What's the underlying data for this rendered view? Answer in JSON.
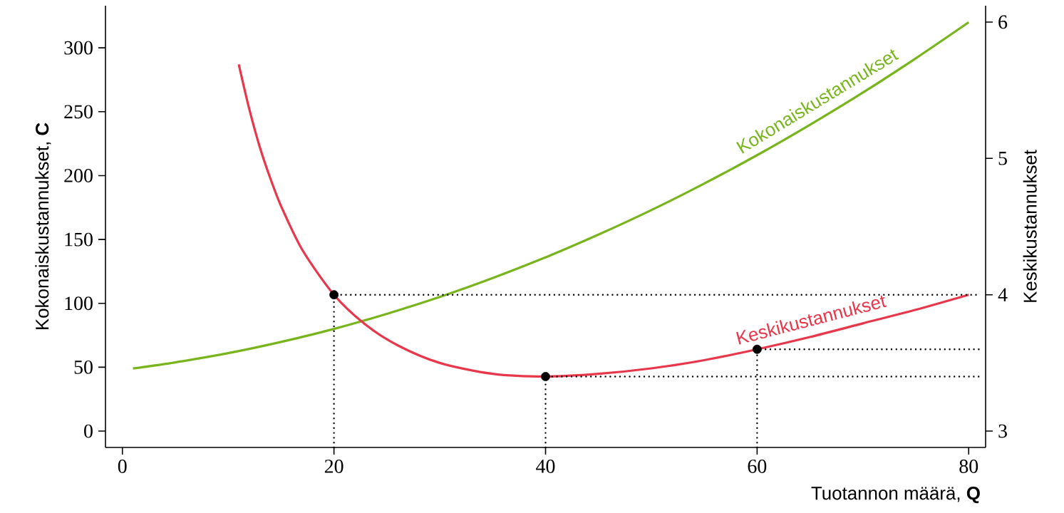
{
  "chart_data": {
    "type": "line",
    "xlabel": "Tuotannon määrä, **Q**",
    "ylabel": "Kokonaiskustannukset, **C**",
    "y2label": "Keskikustannukset",
    "xlim": [
      -1.6,
      81.6
    ],
    "ylim": [
      -12.8,
      333
    ],
    "y2lim": [
      2.88,
      6.12
    ],
    "xticks": [
      0,
      20,
      40,
      60,
      80
    ],
    "yticks": [
      0,
      50,
      100,
      150,
      200,
      250,
      300
    ],
    "y2ticks": [
      3,
      4,
      5,
      6
    ],
    "series": [
      {
        "name": "Kokonaiskustannukset",
        "color": "#78b51d",
        "x": [
          1,
          5,
          10,
          15,
          20,
          25,
          30,
          35,
          40,
          45,
          50,
          55,
          60,
          65,
          70,
          75,
          80
        ],
        "values": [
          49,
          53.8,
          61,
          69.8,
          80,
          91.8,
          105,
          119.8,
          136,
          153.8,
          173,
          193.8,
          216,
          239.8,
          265,
          291.8,
          320
        ]
      },
      {
        "name": "Keskikustannukset",
        "color": "#e8364a",
        "axis": "y2",
        "x": [
          11,
          12,
          13,
          14,
          15,
          17,
          20,
          23,
          26,
          30,
          35,
          40,
          45,
          50,
          55,
          60,
          65,
          70,
          75,
          80
        ],
        "values": [
          5.69,
          5.36,
          5.08,
          4.85,
          4.65,
          4.33,
          4.0,
          3.78,
          3.63,
          3.5,
          3.42,
          3.4,
          3.42,
          3.46,
          3.52,
          3.6,
          3.69,
          3.79,
          3.89,
          4.0
        ]
      },
      {
        "type": "line",
        "color": "#000000",
        "axis": "y2",
        "line_style": "dotted",
        "x": [
          20,
          20,
          81
        ],
        "values": [
          2.88,
          4.0,
          4.0
        ]
      },
      {
        "type": "line",
        "color": "#000000",
        "axis": "y2",
        "line_style": "dotted",
        "x": [
          40,
          40,
          81
        ],
        "values": [
          2.88,
          3.4,
          3.4
        ]
      },
      {
        "type": "line",
        "color": "#000000",
        "axis": "y2",
        "line_style": "dotted",
        "x": [
          60,
          60,
          81
        ],
        "values": [
          2.88,
          3.6,
          3.6
        ]
      },
      {
        "type": "scatter",
        "color": "#000000",
        "axis": "y2",
        "marker": "circle",
        "x": [
          20,
          40,
          60
        ],
        "values": [
          4.0,
          3.4,
          3.6
        ]
      }
    ]
  }
}
